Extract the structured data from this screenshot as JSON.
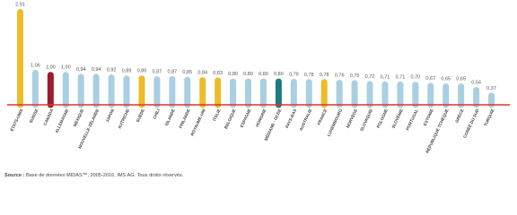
{
  "chart_data": {
    "type": "bar",
    "categories": [
      "ÉTATS-UNIS",
      "SUISSE",
      "CANADA",
      "ALLEMAGNE",
      "MEXIQUE",
      "NOUVELLE-ZÉLANDE",
      "JAPON",
      "AUTRICHE",
      "SUÈDE",
      "CHILI",
      "ISLANDE",
      "FINLANDE",
      "ROYAUME-UNI",
      "ITALIE",
      "BELGIQUE",
      "ESPAGNE",
      "HONGRIE",
      "MÉDIANE - OCDE",
      "PAYS-BAS",
      "AUSTRALIE",
      "FRANCE",
      "LUXEMBOURG",
      "NORVÈGE",
      "SLOVAQUIE",
      "POLOGNE",
      "SLOVÉNIE",
      "PORTUGAL",
      "ESTONIE",
      "RÉPUBLIQUE TCHÈQUE",
      "GRÈCE",
      "CORÉE DU SUD",
      "TURQUIE"
    ],
    "values": [
      2.91,
      1.06,
      1.0,
      1.0,
      0.94,
      0.94,
      0.92,
      0.89,
      0.89,
      0.87,
      0.87,
      0.85,
      0.84,
      0.83,
      0.8,
      0.8,
      0.8,
      0.8,
      0.79,
      0.78,
      0.78,
      0.76,
      0.75,
      0.72,
      0.71,
      0.71,
      0.7,
      0.67,
      0.65,
      0.65,
      0.54,
      0.37
    ],
    "value_labels": [
      "2,91",
      "1,06",
      "1,00",
      "1,00",
      "0,94",
      "0,94",
      "0,92",
      "0,89",
      "0,89",
      "0,87",
      "0,87",
      "0,85",
      "0,84",
      "0,83",
      "0,80",
      "0,80",
      "0,80",
      "0,80",
      "0,79",
      "0,78",
      "0,78",
      "0,76",
      "0,75",
      "0,72",
      "0,71",
      "0,71",
      "0,70",
      "0,67",
      "0,65",
      "0,65",
      "0,54",
      "0,37"
    ],
    "colors": [
      "#ecbc2a",
      "#a9cfe2",
      "#9c1b2f",
      "#a9cfe2",
      "#a9cfe2",
      "#a9cfe2",
      "#a9cfe2",
      "#a9cfe2",
      "#ecbc2a",
      "#a9cfe2",
      "#a9cfe2",
      "#a9cfe2",
      "#ecbc2a",
      "#ecbc2a",
      "#a9cfe2",
      "#a9cfe2",
      "#a9cfe2",
      "#1e7a80",
      "#a9cfe2",
      "#a9cfe2",
      "#ecbc2a",
      "#a9cfe2",
      "#a9cfe2",
      "#a9cfe2",
      "#a9cfe2",
      "#a9cfe2",
      "#a9cfe2",
      "#a9cfe2",
      "#a9cfe2",
      "#a9cfe2",
      "#a9cfe2",
      "#a9cfe2"
    ],
    "baseline_color": "#e2322a",
    "source_label": "Source :",
    "source_text": "Base de données MIDAS™, 2005-2016, IMS AG. Tous droits réservés."
  }
}
